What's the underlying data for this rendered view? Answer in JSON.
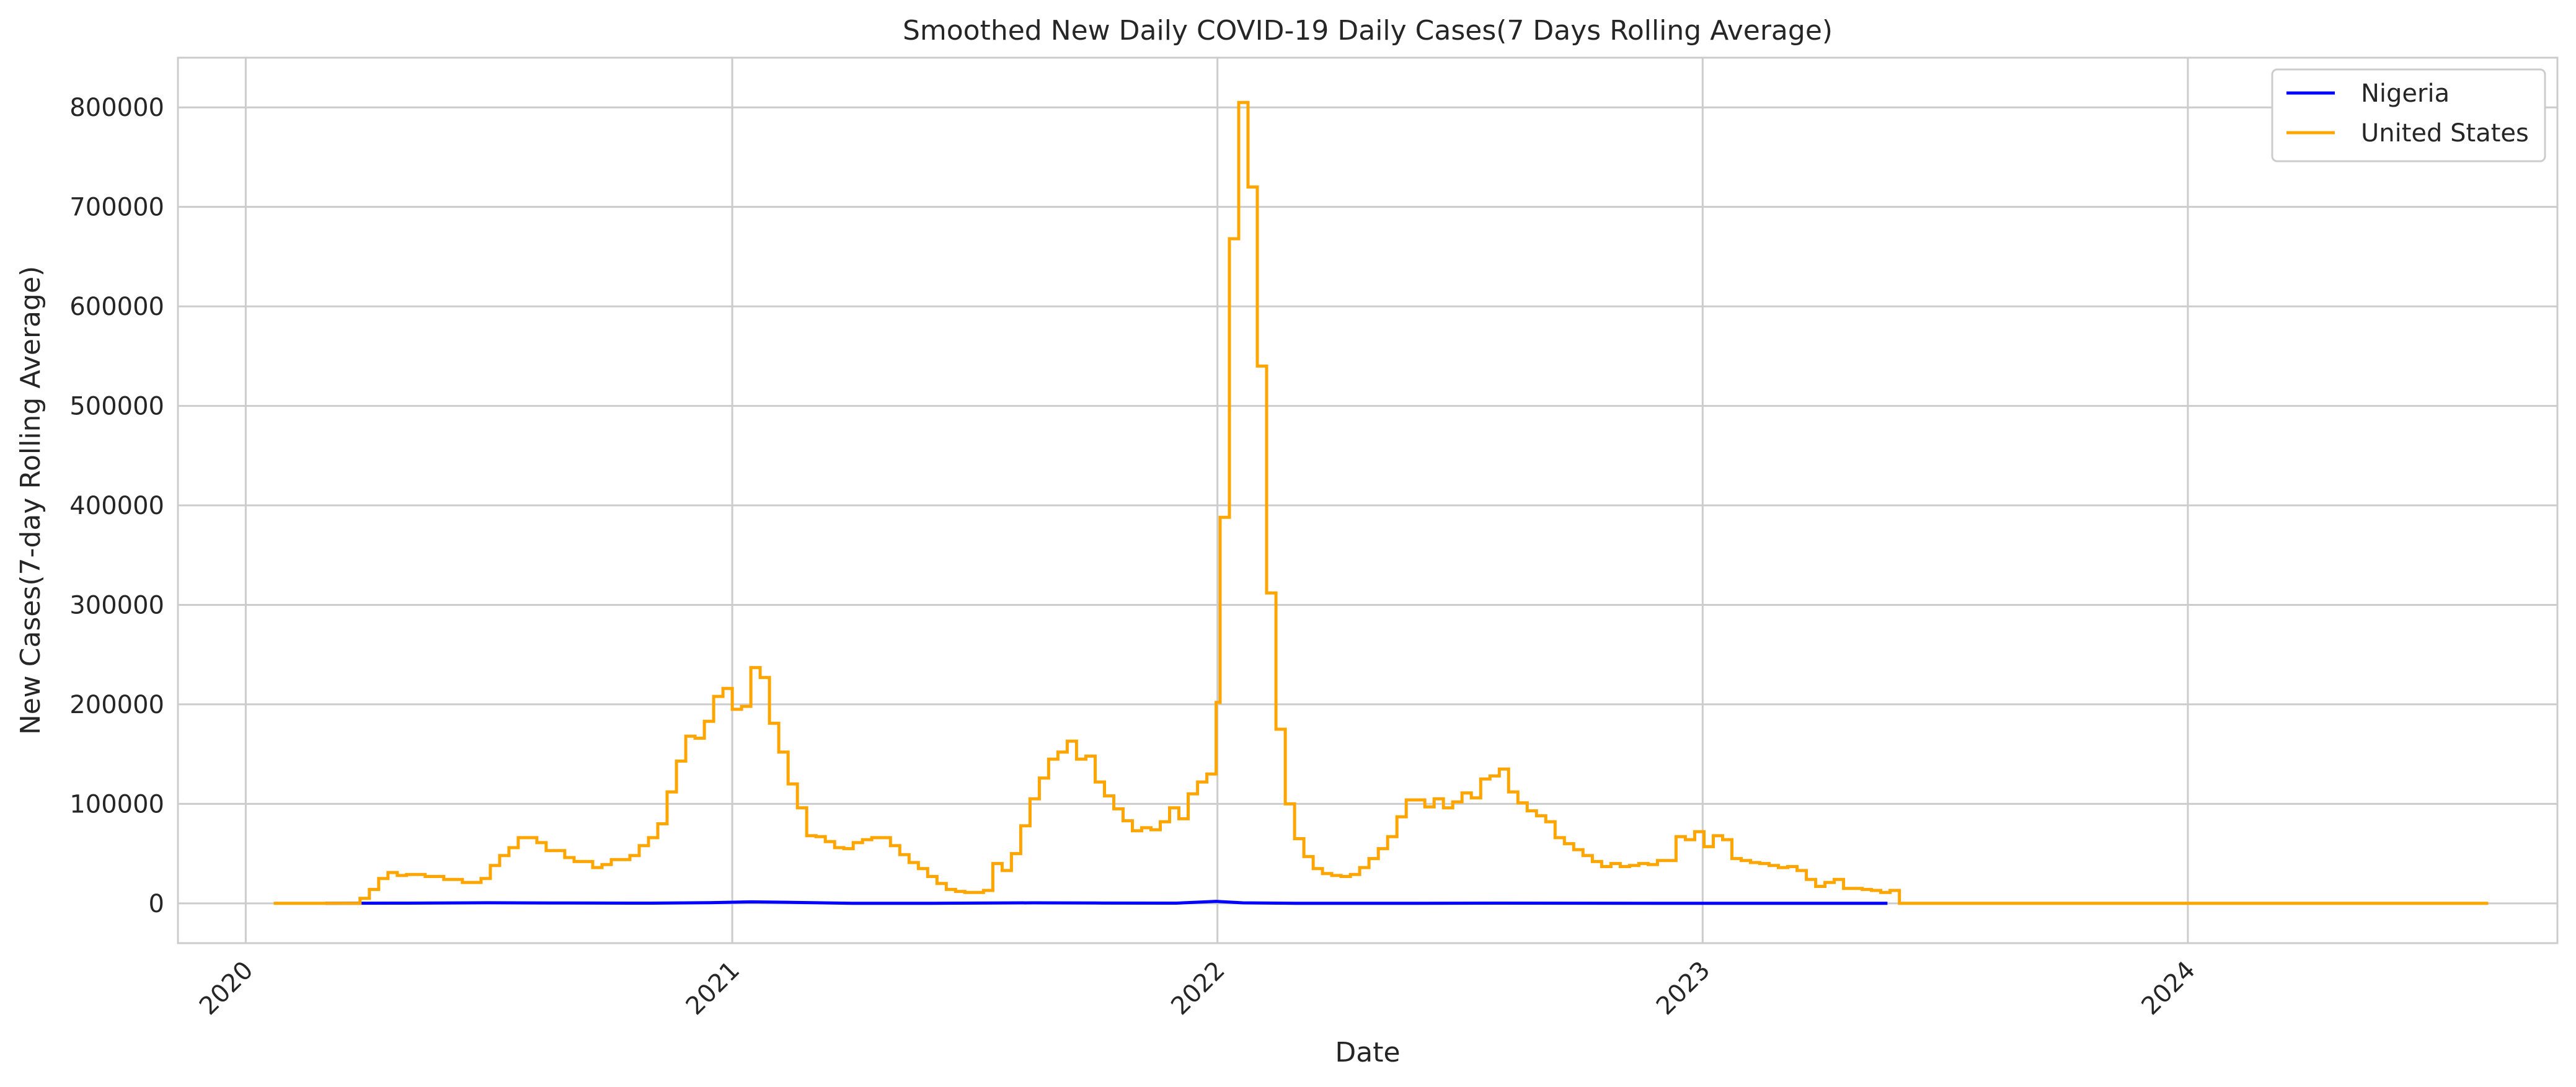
{
  "chart_data": {
    "type": "line",
    "title": "Smoothed New Daily COVID-19 Daily Cases(7 Days Rolling Average)",
    "xlabel": "Date",
    "ylabel": "New Cases(7-day Rolling Average)",
    "xlim": [
      "2019-11-11",
      "2024-10-05"
    ],
    "ylim": [
      -40000,
      850000
    ],
    "x_ticks": [
      "2020",
      "2021",
      "2022",
      "2023",
      "2024"
    ],
    "y_ticks": [
      0,
      100000,
      200000,
      300000,
      400000,
      500000,
      600000,
      700000,
      800000
    ],
    "grid": true,
    "legend_position": "top-right",
    "series": [
      {
        "name": "Nigeria",
        "color": "#0000ff",
        "step": false,
        "points": [
          [
            "2020-03-01",
            0
          ],
          [
            "2020-05-01",
            200
          ],
          [
            "2020-07-01",
            600
          ],
          [
            "2020-09-01",
            300
          ],
          [
            "2020-11-01",
            200
          ],
          [
            "2020-12-15",
            700
          ],
          [
            "2021-01-15",
            1500
          ],
          [
            "2021-02-15",
            1000
          ],
          [
            "2021-04-01",
            100
          ],
          [
            "2021-06-01",
            50
          ],
          [
            "2021-08-15",
            500
          ],
          [
            "2021-10-01",
            300
          ],
          [
            "2021-12-01",
            200
          ],
          [
            "2021-12-31",
            2000
          ],
          [
            "2022-01-20",
            500
          ],
          [
            "2022-03-01",
            100
          ],
          [
            "2022-06-01",
            100
          ],
          [
            "2022-08-01",
            200
          ],
          [
            "2022-12-01",
            50
          ],
          [
            "2023-05-20",
            0
          ]
        ]
      },
      {
        "name": "United States",
        "color": "#ffa500",
        "step": true,
        "points": [
          [
            "2020-01-22",
            0
          ],
          [
            "2020-03-20",
            0
          ],
          [
            "2020-03-27",
            5000
          ],
          [
            "2020-04-03",
            14000
          ],
          [
            "2020-04-10",
            25000
          ],
          [
            "2020-04-17",
            31000
          ],
          [
            "2020-04-24",
            28000
          ],
          [
            "2020-05-01",
            29000
          ],
          [
            "2020-05-15",
            27000
          ],
          [
            "2020-05-29",
            24000
          ],
          [
            "2020-06-12",
            21000
          ],
          [
            "2020-06-26",
            25000
          ],
          [
            "2020-07-03",
            38000
          ],
          [
            "2020-07-10",
            48000
          ],
          [
            "2020-07-17",
            56000
          ],
          [
            "2020-07-24",
            66000
          ],
          [
            "2020-08-07",
            61000
          ],
          [
            "2020-08-14",
            53000
          ],
          [
            "2020-08-28",
            46000
          ],
          [
            "2020-09-04",
            42000
          ],
          [
            "2020-09-18",
            36000
          ],
          [
            "2020-09-25",
            39000
          ],
          [
            "2020-10-02",
            44000
          ],
          [
            "2020-10-16",
            48000
          ],
          [
            "2020-10-23",
            58000
          ],
          [
            "2020-10-30",
            66000
          ],
          [
            "2020-11-06",
            80000
          ],
          [
            "2020-11-13",
            112000
          ],
          [
            "2020-11-20",
            143000
          ],
          [
            "2020-11-27",
            168000
          ],
          [
            "2020-12-04",
            166000
          ],
          [
            "2020-12-11",
            183000
          ],
          [
            "2020-12-18",
            208000
          ],
          [
            "2020-12-25",
            216000
          ],
          [
            "2021-01-01",
            195000
          ],
          [
            "2021-01-08",
            198000
          ],
          [
            "2021-01-15",
            237000
          ],
          [
            "2021-01-22",
            227000
          ],
          [
            "2021-01-29",
            181000
          ],
          [
            "2021-02-05",
            152000
          ],
          [
            "2021-02-12",
            120000
          ],
          [
            "2021-02-19",
            96000
          ],
          [
            "2021-02-26",
            68000
          ],
          [
            "2021-03-05",
            67000
          ],
          [
            "2021-03-12",
            62000
          ],
          [
            "2021-03-19",
            56000
          ],
          [
            "2021-03-26",
            55000
          ],
          [
            "2021-04-02",
            61000
          ],
          [
            "2021-04-09",
            64000
          ],
          [
            "2021-04-16",
            66000
          ],
          [
            "2021-04-30",
            58000
          ],
          [
            "2021-05-07",
            49000
          ],
          [
            "2021-05-14",
            41000
          ],
          [
            "2021-05-21",
            35000
          ],
          [
            "2021-05-28",
            27000
          ],
          [
            "2021-06-04",
            20000
          ],
          [
            "2021-06-11",
            14000
          ],
          [
            "2021-06-18",
            12000
          ],
          [
            "2021-06-25",
            11000
          ],
          [
            "2021-07-09",
            13000
          ],
          [
            "2021-07-16",
            40000
          ],
          [
            "2021-07-23",
            33000
          ],
          [
            "2021-07-30",
            50000
          ],
          [
            "2021-08-06",
            78000
          ],
          [
            "2021-08-13",
            105000
          ],
          [
            "2021-08-20",
            126000
          ],
          [
            "2021-08-27",
            145000
          ],
          [
            "2021-09-03",
            152000
          ],
          [
            "2021-09-10",
            163000
          ],
          [
            "2021-09-17",
            145000
          ],
          [
            "2021-09-24",
            148000
          ],
          [
            "2021-10-01",
            122000
          ],
          [
            "2021-10-08",
            108000
          ],
          [
            "2021-10-15",
            95000
          ],
          [
            "2021-10-22",
            83000
          ],
          [
            "2021-10-29",
            73000
          ],
          [
            "2021-11-05",
            76000
          ],
          [
            "2021-11-12",
            74000
          ],
          [
            "2021-11-19",
            82000
          ],
          [
            "2021-11-26",
            96000
          ],
          [
            "2021-12-03",
            85000
          ],
          [
            "2021-12-10",
            110000
          ],
          [
            "2021-12-17",
            122000
          ],
          [
            "2021-12-24",
            130000
          ],
          [
            "2021-12-31",
            202000
          ],
          [
            "2022-01-03",
            388000
          ],
          [
            "2022-01-10",
            668000
          ],
          [
            "2022-01-17",
            805000
          ],
          [
            "2022-01-24",
            720000
          ],
          [
            "2022-01-31",
            540000
          ],
          [
            "2022-02-07",
            312000
          ],
          [
            "2022-02-14",
            175000
          ],
          [
            "2022-02-21",
            100000
          ],
          [
            "2022-02-28",
            65000
          ],
          [
            "2022-03-07",
            47000
          ],
          [
            "2022-03-14",
            35000
          ],
          [
            "2022-03-21",
            30000
          ],
          [
            "2022-03-28",
            28000
          ],
          [
            "2022-04-04",
            27000
          ],
          [
            "2022-04-11",
            29000
          ],
          [
            "2022-04-18",
            36000
          ],
          [
            "2022-04-25",
            45000
          ],
          [
            "2022-05-02",
            55000
          ],
          [
            "2022-05-09",
            67000
          ],
          [
            "2022-05-16",
            87000
          ],
          [
            "2022-05-23",
            104000
          ],
          [
            "2022-06-06",
            97000
          ],
          [
            "2022-06-13",
            105000
          ],
          [
            "2022-06-20",
            96000
          ],
          [
            "2022-06-27",
            102000
          ],
          [
            "2022-07-04",
            111000
          ],
          [
            "2022-07-11",
            106000
          ],
          [
            "2022-07-18",
            125000
          ],
          [
            "2022-07-25",
            128000
          ],
          [
            "2022-08-01",
            135000
          ],
          [
            "2022-08-08",
            112000
          ],
          [
            "2022-08-15",
            101000
          ],
          [
            "2022-08-22",
            93000
          ],
          [
            "2022-08-29",
            88000
          ],
          [
            "2022-09-05",
            82000
          ],
          [
            "2022-09-12",
            66000
          ],
          [
            "2022-09-19",
            60000
          ],
          [
            "2022-09-26",
            54000
          ],
          [
            "2022-10-03",
            48000
          ],
          [
            "2022-10-10",
            42000
          ],
          [
            "2022-10-17",
            37000
          ],
          [
            "2022-10-24",
            40000
          ],
          [
            "2022-10-31",
            37000
          ],
          [
            "2022-11-07",
            38000
          ],
          [
            "2022-11-14",
            40000
          ],
          [
            "2022-11-21",
            39000
          ],
          [
            "2022-11-28",
            43000
          ],
          [
            "2022-12-12",
            67000
          ],
          [
            "2022-12-19",
            64000
          ],
          [
            "2022-12-26",
            72000
          ],
          [
            "2023-01-02",
            57000
          ],
          [
            "2023-01-09",
            68000
          ],
          [
            "2023-01-16",
            64000
          ],
          [
            "2023-01-23",
            45000
          ],
          [
            "2023-01-30",
            43000
          ],
          [
            "2023-02-06",
            41000
          ],
          [
            "2023-02-13",
            40000
          ],
          [
            "2023-02-20",
            38000
          ],
          [
            "2023-02-27",
            36000
          ],
          [
            "2023-03-06",
            37000
          ],
          [
            "2023-03-13",
            33000
          ],
          [
            "2023-03-20",
            24000
          ],
          [
            "2023-03-27",
            17000
          ],
          [
            "2023-04-03",
            21000
          ],
          [
            "2023-04-10",
            24000
          ],
          [
            "2023-04-17",
            15000
          ],
          [
            "2023-05-01",
            14000
          ],
          [
            "2023-05-08",
            13000
          ],
          [
            "2023-05-15",
            11000
          ],
          [
            "2023-05-22",
            13000
          ],
          [
            "2023-05-29",
            0
          ],
          [
            "2024-08-14",
            0
          ]
        ]
      }
    ]
  }
}
